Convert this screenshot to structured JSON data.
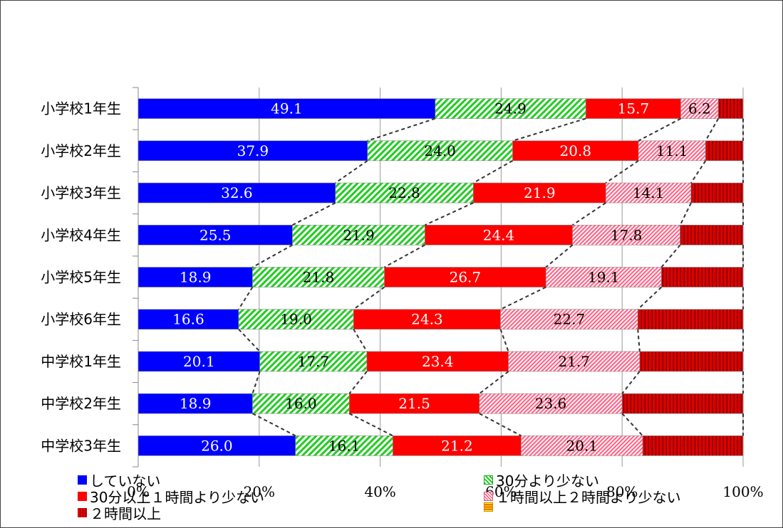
{
  "chart_data": {
    "type": "bar",
    "orientation": "horizontal",
    "stacked": "percent",
    "categories": [
      "小学校1年生",
      "小学校2年生",
      "小学校3年生",
      "小学校4年生",
      "小学校5年生",
      "小学校6年生",
      "中学校1年生",
      "中学校2年生",
      "中学校3年生"
    ],
    "series": [
      {
        "name": "していない",
        "color": "#0000FF",
        "pattern": "solid",
        "label_color": "#FFFFFF",
        "values": [
          49.1,
          37.9,
          32.6,
          25.5,
          18.9,
          16.6,
          20.1,
          18.9,
          26.0
        ]
      },
      {
        "name": "30分より少ない",
        "color": "#22CC22",
        "pattern": "diagonal-stripes",
        "label_color": "#000000",
        "values": [
          24.9,
          24.0,
          22.8,
          21.9,
          21.8,
          19.0,
          17.7,
          16.0,
          16.1
        ]
      },
      {
        "name": "30分以上１時間より少ない",
        "color": "#FF0000",
        "pattern": "solid",
        "label_color": "#FFFFFF",
        "values": [
          15.7,
          20.8,
          21.9,
          24.4,
          26.7,
          24.3,
          23.4,
          21.5,
          21.2
        ]
      },
      {
        "name": "１時間以上２時間より少ない",
        "color": "#FF6688",
        "pattern": "diagonal-hatch",
        "label_color": "#000000",
        "values": [
          6.2,
          11.1,
          14.1,
          17.8,
          19.1,
          22.7,
          21.7,
          23.6,
          20.1
        ]
      },
      {
        "name": "２時間以上",
        "color": "#DD0000",
        "pattern": "vertical-stripes",
        "label_color": "#FFFFFF",
        "values": [
          4.1,
          6.2,
          8.6,
          10.4,
          13.5,
          17.4,
          17.1,
          20.0,
          16.6
        ]
      }
    ],
    "extra_legend": [
      {
        "name": "",
        "color": "#FFD700",
        "pattern": "horizontal-stripes"
      }
    ],
    "labeled_series_count": 4,
    "xlim": [
      0,
      100
    ],
    "xticks": [
      "0%",
      "20%",
      "40%",
      "60%",
      "80%",
      "100%"
    ],
    "grid": true,
    "series_connector_lines": "dashed",
    "legend_position": "bottom"
  }
}
